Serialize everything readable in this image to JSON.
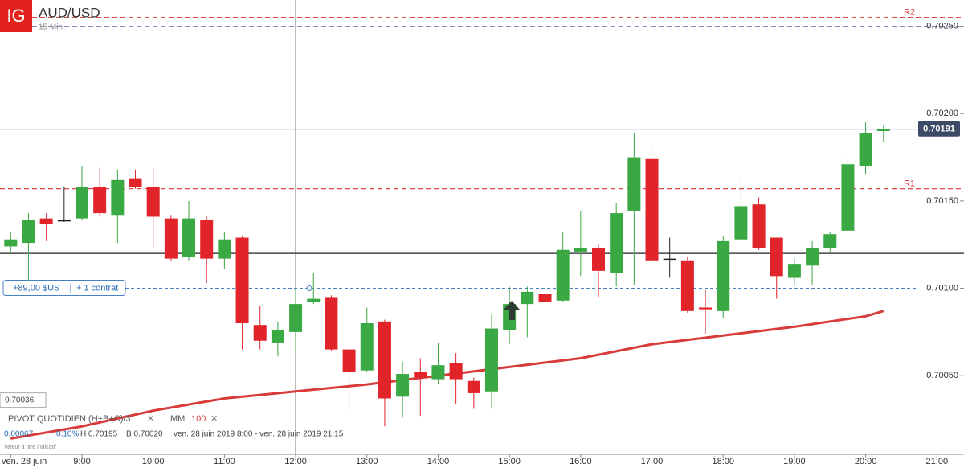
{
  "header": {
    "logo": "IG",
    "title": "AUD/USD",
    "timeframe": "15 Min"
  },
  "chart_data": {
    "type": "candlestick",
    "x": [
      8,
      8.25,
      8.5,
      8.75,
      9,
      9.25,
      9.5,
      9.75,
      10,
      10.25,
      10.5,
      10.75,
      11,
      11.25,
      11.5,
      11.75,
      12,
      12.25,
      12.5,
      12.75,
      13,
      13.25,
      13.5,
      13.75,
      14,
      14.25,
      14.5,
      14.75,
      15,
      15.25,
      15.5,
      15.75,
      16,
      16.25,
      16.5,
      16.75,
      17,
      17.25,
      17.5,
      17.75,
      18,
      18.25,
      18.5,
      18.75,
      19,
      19.25,
      19.5,
      19.75,
      20,
      20.25
    ],
    "open": [
      0.70124,
      0.70126,
      0.7014,
      0.70139,
      0.7014,
      0.70158,
      0.70142,
      0.70163,
      0.70158,
      0.7014,
      0.70118,
      0.70139,
      0.70117,
      0.70129,
      0.70079,
      0.70069,
      0.70075,
      0.70092,
      0.70095,
      0.70065,
      0.70053,
      0.70081,
      0.70038,
      0.70052,
      0.70048,
      0.70057,
      0.70047,
      0.70041,
      0.70076,
      0.70091,
      0.70097,
      0.70093,
      0.70121,
      0.70123,
      0.70109,
      0.70144,
      0.70174,
      0.70117,
      0.70116,
      0.70089,
      0.70087,
      0.70128,
      0.70148,
      0.70129,
      0.70106,
      0.70113,
      0.70123,
      0.70133,
      0.7017,
      0.7019
    ],
    "high": [
      0.70132,
      0.70143,
      0.70143,
      0.70158,
      0.7017,
      0.70169,
      0.70168,
      0.70168,
      0.70169,
      0.70142,
      0.7015,
      0.70141,
      0.70132,
      0.7013,
      0.7009,
      0.70081,
      0.70102,
      0.70109,
      0.70096,
      0.70065,
      0.70089,
      0.70082,
      0.70058,
      0.7006,
      0.70069,
      0.70063,
      0.70049,
      0.70085,
      0.70101,
      0.70101,
      0.701,
      0.70132,
      0.70144,
      0.70125,
      0.70149,
      0.70189,
      0.70183,
      0.70129,
      0.70118,
      0.70099,
      0.7013,
      0.70162,
      0.70152,
      0.70129,
      0.70117,
      0.70127,
      0.70132,
      0.70175,
      0.70195,
      0.70193
    ],
    "low": [
      0.7012,
      0.70104,
      0.70127,
      0.70138,
      0.70139,
      0.70141,
      0.70126,
      0.70157,
      0.70123,
      0.70116,
      0.70116,
      0.70103,
      0.70111,
      0.70065,
      0.70065,
      0.70061,
      0.70063,
      0.70091,
      0.70064,
      0.7003,
      0.70052,
      0.70021,
      0.70026,
      0.70027,
      0.70045,
      0.70034,
      0.70031,
      0.70031,
      0.70068,
      0.70072,
      0.7007,
      0.70092,
      0.70107,
      0.70095,
      0.70101,
      0.70102,
      0.70115,
      0.70106,
      0.70086,
      0.70074,
      0.70083,
      0.70127,
      0.70122,
      0.70094,
      0.70102,
      0.70102,
      0.7012,
      0.70132,
      0.70165,
      0.70184
    ],
    "close": [
      0.70128,
      0.70139,
      0.70137,
      0.70139,
      0.70158,
      0.70143,
      0.70162,
      0.70158,
      0.70141,
      0.70117,
      0.7014,
      0.70117,
      0.70128,
      0.7008,
      0.7007,
      0.70076,
      0.70091,
      0.70094,
      0.70065,
      0.70052,
      0.7008,
      0.70037,
      0.70051,
      0.70049,
      0.70056,
      0.70048,
      0.7004,
      0.70077,
      0.70091,
      0.70098,
      0.70092,
      0.70122,
      0.70123,
      0.7011,
      0.70143,
      0.70175,
      0.70116,
      0.70117,
      0.70087,
      0.70088,
      0.70127,
      0.70147,
      0.70123,
      0.70107,
      0.70114,
      0.70123,
      0.70131,
      0.70171,
      0.70189,
      0.70191
    ],
    "up_color": "#3aa843",
    "down_color": "#e0242a",
    "flat_color": "#222222",
    "ma": {
      "name": "MM",
      "period": "100",
      "color": "#d93a3a",
      "x": [
        8,
        9,
        10,
        11,
        12,
        13,
        14,
        15,
        16,
        17,
        18,
        19,
        20,
        20.25
      ],
      "values": [
        0.70014,
        0.70021,
        0.7003,
        0.70037,
        0.70041,
        0.70045,
        0.7005,
        0.70055,
        0.7006,
        0.70068,
        0.70073,
        0.70078,
        0.70084,
        0.70087
      ]
    },
    "levels": [
      {
        "name": "R2",
        "value": 0.70255,
        "color": "#e03030",
        "dashed": true
      },
      {
        "value": 0.7025,
        "color": "#8a8ac4",
        "dashed": true
      },
      {
        "name": "R1",
        "value": 0.70157,
        "color": "#e03030",
        "dashed": true
      },
      {
        "value": 0.7012,
        "color": "#222222",
        "dashed": false
      }
    ],
    "last_price": 0.70191,
    "position": {
      "value": 0.701,
      "pnl": "+89,00 $US",
      "size": "+ 1 contrat"
    },
    "crosshair": {
      "x": 12,
      "y": 0.70036
    },
    "xlim": [
      7.85,
      21.38
    ],
    "ylim": [
      0.70005,
      0.70265
    ],
    "xticks": [
      {
        "value": 8,
        "label": "ven. 28 juin"
      },
      {
        "value": 9,
        "label": "9:00"
      },
      {
        "value": 10,
        "label": "10:00"
      },
      {
        "value": 11,
        "label": "11:00"
      },
      {
        "value": 12,
        "label": "12:00"
      },
      {
        "value": 13,
        "label": "13:00"
      },
      {
        "value": 14,
        "label": "14:00"
      },
      {
        "value": 15,
        "label": "15:00"
      },
      {
        "value": 16,
        "label": "16:00"
      },
      {
        "value": 17,
        "label": "17:00"
      },
      {
        "value": 18,
        "label": "18:00"
      },
      {
        "value": 19,
        "label": "19:00"
      },
      {
        "value": 20,
        "label": "20:00"
      },
      {
        "value": 21,
        "label": "21:00"
      }
    ],
    "yticks": [
      {
        "value": 0.7005,
        "label": "0.70050"
      },
      {
        "value": 0.701,
        "label": "0.70100"
      },
      {
        "value": 0.7015,
        "label": "0.70150"
      },
      {
        "value": 0.702,
        "label": "0.70200"
      },
      {
        "value": 0.7025,
        "label": "0.70250"
      }
    ]
  },
  "info": {
    "pivot": "PIVOT QUOTIDIEN (H+B+C)/3",
    "change": "0.00067",
    "change_pct": "0.10%",
    "high": "H 0.70195",
    "low": "B 0.70020",
    "range": "ven. 28 juin 2019 8:00 - ven. 28 juin 2019 21:15",
    "disclaimer": "Valeur à titre indicatif"
  }
}
